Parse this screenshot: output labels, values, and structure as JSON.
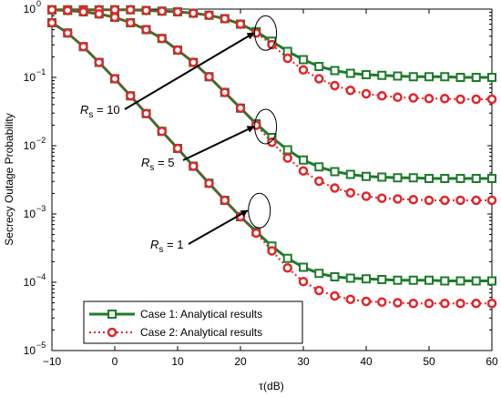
{
  "chart_data": {
    "type": "line",
    "xlabel": "τ(dB)",
    "ylabel": "Secrecy Outage Probability",
    "xlim": [
      -10,
      60
    ],
    "ylim_exponent": [
      -5,
      0
    ],
    "yscale": "log",
    "x_ticks": [
      "−10",
      "0",
      "10",
      "20",
      "30",
      "40",
      "50",
      "60"
    ],
    "y_tick_base": "10",
    "y_tick_exponents": [
      "−5",
      "−4",
      "−3",
      "−2",
      "−1",
      "0"
    ],
    "grid": false,
    "legend_position": "bottom-left",
    "x": [
      -10,
      -7.5,
      -5,
      -2.5,
      0,
      2.5,
      5,
      7.5,
      10,
      12.5,
      15,
      17.5,
      20,
      22.5,
      25,
      27.5,
      30,
      32.5,
      35,
      37.5,
      40,
      42.5,
      45,
      47.5,
      50,
      52.5,
      55,
      57.5,
      60
    ],
    "series": [
      {
        "name": "Case 1: Analytical results",
        "color": "#1e7b2b",
        "marker": "square",
        "groups": [
          {
            "label": "Rs = 10",
            "log10": [
              -0.01,
              -0.01,
              -0.01,
              -0.01,
              -0.01,
              -0.01,
              -0.02,
              -0.03,
              -0.04,
              -0.06,
              -0.09,
              -0.14,
              -0.22,
              -0.33,
              -0.47,
              -0.62,
              -0.74,
              -0.84,
              -0.9,
              -0.94,
              -0.96,
              -0.97,
              -0.98,
              -0.99,
              -0.99,
              -0.99,
              -1.0,
              -1.0,
              -1.0
            ]
          },
          {
            "label": "Rs = 5",
            "log10": [
              -0.01,
              -0.02,
              -0.04,
              -0.07,
              -0.12,
              -0.2,
              -0.3,
              -0.43,
              -0.6,
              -0.78,
              -0.99,
              -1.22,
              -1.45,
              -1.68,
              -1.88,
              -2.06,
              -2.21,
              -2.31,
              -2.38,
              -2.42,
              -2.45,
              -2.46,
              -2.47,
              -2.47,
              -2.48,
              -2.48,
              -2.48,
              -2.48,
              -2.48
            ]
          },
          {
            "label": "Rs = 1",
            "log10": [
              -0.2,
              -0.35,
              -0.55,
              -0.78,
              -1.02,
              -1.27,
              -1.53,
              -1.79,
              -2.04,
              -2.3,
              -2.55,
              -2.8,
              -3.04,
              -3.26,
              -3.47,
              -3.65,
              -3.78,
              -3.87,
              -3.92,
              -3.94,
              -3.95,
              -3.96,
              -3.97,
              -3.97,
              -3.97,
              -3.98,
              -3.98,
              -3.98,
              -3.98
            ]
          }
        ]
      },
      {
        "name": "Case 2: Analytical results",
        "color": "#e0262a",
        "marker": "circle",
        "groups": [
          {
            "label": "Rs = 10",
            "log10": [
              -0.01,
              -0.01,
              -0.01,
              -0.01,
              -0.01,
              -0.01,
              -0.02,
              -0.03,
              -0.04,
              -0.06,
              -0.09,
              -0.14,
              -0.22,
              -0.35,
              -0.52,
              -0.72,
              -0.89,
              -1.02,
              -1.12,
              -1.19,
              -1.24,
              -1.27,
              -1.29,
              -1.3,
              -1.31,
              -1.31,
              -1.32,
              -1.32,
              -1.32
            ]
          },
          {
            "label": "Rs = 5",
            "log10": [
              -0.01,
              -0.02,
              -0.04,
              -0.07,
              -0.12,
              -0.2,
              -0.3,
              -0.43,
              -0.6,
              -0.78,
              -0.99,
              -1.22,
              -1.45,
              -1.7,
              -1.95,
              -2.18,
              -2.37,
              -2.52,
              -2.62,
              -2.69,
              -2.74,
              -2.77,
              -2.78,
              -2.79,
              -2.8,
              -2.8,
              -2.8,
              -2.8,
              -2.8
            ]
          },
          {
            "label": "Rs = 1",
            "log10": [
              -0.2,
              -0.35,
              -0.55,
              -0.78,
              -1.02,
              -1.27,
              -1.53,
              -1.79,
              -2.04,
              -2.3,
              -2.55,
              -2.8,
              -3.04,
              -3.28,
              -3.54,
              -3.79,
              -3.99,
              -4.12,
              -4.2,
              -4.25,
              -4.28,
              -4.29,
              -4.3,
              -4.31,
              -4.31,
              -4.31,
              -4.31,
              -4.31,
              -4.31
            ]
          }
        ]
      }
    ],
    "annotations": [
      {
        "base": "R",
        "sub": "s",
        "rest": " = 10",
        "x": 24,
        "log10": -0.35
      },
      {
        "base": "R",
        "sub": "s",
        "rest": " = 5",
        "x": 24,
        "log10": -1.72
      },
      {
        "base": "R",
        "sub": "s",
        "rest": " = 1",
        "x": 23,
        "log10": -2.95
      }
    ]
  }
}
